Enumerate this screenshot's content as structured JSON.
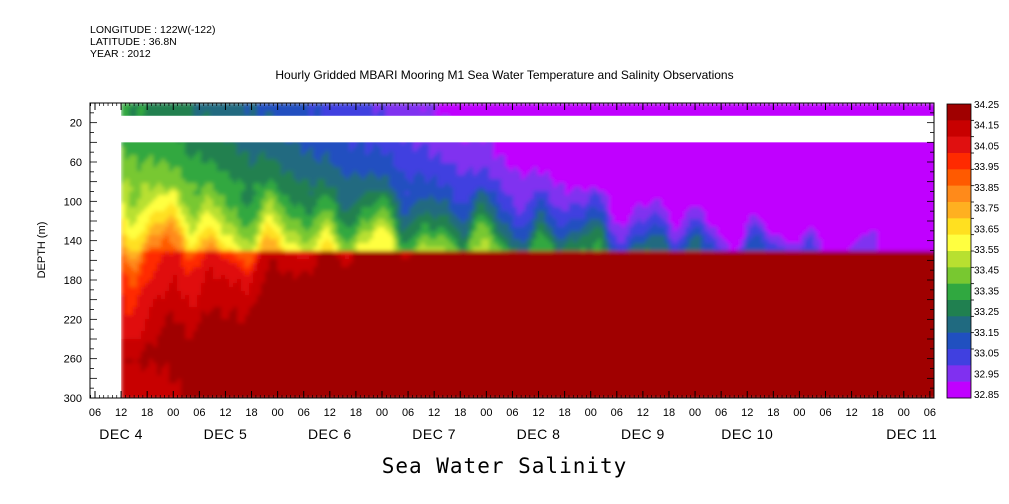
{
  "header": {
    "longitude": "LONGITUDE : 122W(-122)",
    "latitude": "LATITUDE : 36.8N",
    "year": "YEAR : 2012"
  },
  "colors": {
    "background": "#ffffff",
    "nodata": "#ffffff",
    "axis": "#000000"
  },
  "chart_data": {
    "type": "heatmap",
    "title": "Hourly Gridded MBARI Mooring M1 Sea Water Temperature and Salinity Observations",
    "xlabel": "Sea Water Salinity",
    "ylabel": "DEPTH (m)",
    "ylim": [
      300,
      0
    ],
    "x_hour_ticks": [
      "06",
      "12",
      "18",
      "00",
      "06",
      "12",
      "18",
      "00",
      "06",
      "12",
      "18",
      "00",
      "06",
      "12",
      "18",
      "00",
      "06",
      "12",
      "18",
      "00",
      "06",
      "12",
      "18",
      "00",
      "06",
      "12",
      "18",
      "00",
      "06",
      "12",
      "18",
      "00",
      "06"
    ],
    "day_labels": [
      "DEC 4",
      "DEC 5",
      "DEC 6",
      "DEC 7",
      "DEC 8",
      "DEC 9",
      "DEC 10",
      "DEC 11"
    ],
    "y_ticks": [
      20,
      60,
      100,
      140,
      180,
      220,
      260,
      300
    ],
    "data_start": "DEC 4 12:00",
    "data_end": "DEC 11 06:00",
    "nodata_depth_band": [
      13,
      40
    ],
    "depth_profile": [
      {
        "depth": 10,
        "value": 33.32
      },
      {
        "depth": 40,
        "value": 33.38
      },
      {
        "depth": 60,
        "value": 33.42
      },
      {
        "depth": 90,
        "value": 33.52
      },
      {
        "depth": 110,
        "value": 33.62
      },
      {
        "depth": 130,
        "value": 33.74
      },
      {
        "depth": 150,
        "value": 33.92
      },
      {
        "depth": 175,
        "value": 34.0
      },
      {
        "depth": 210,
        "value": 34.08
      },
      {
        "depth": 240,
        "value": 34.15
      },
      {
        "depth": 255,
        "value": 34.2
      },
      {
        "depth": 275,
        "value": 34.15
      },
      {
        "depth": 300,
        "value": 34.12
      }
    ],
    "colorbar": {
      "levels": [
        "34.25",
        "34.15",
        "34.05",
        "33.95",
        "33.85",
        "33.75",
        "33.65",
        "33.55",
        "33.45",
        "33.35",
        "33.25",
        "33.15",
        "33.05",
        "32.95",
        "32.85"
      ],
      "colors": [
        "#a00000",
        "#c80000",
        "#e01010",
        "#ff2a00",
        "#ff5a00",
        "#ff8a1a",
        "#ffb020",
        "#ffe020",
        "#ffff40",
        "#b8e030",
        "#78c830",
        "#30a840",
        "#208050",
        "#206a80",
        "#2050c0",
        "#4040e0",
        "#8030f0",
        "#c000ff"
      ]
    }
  }
}
